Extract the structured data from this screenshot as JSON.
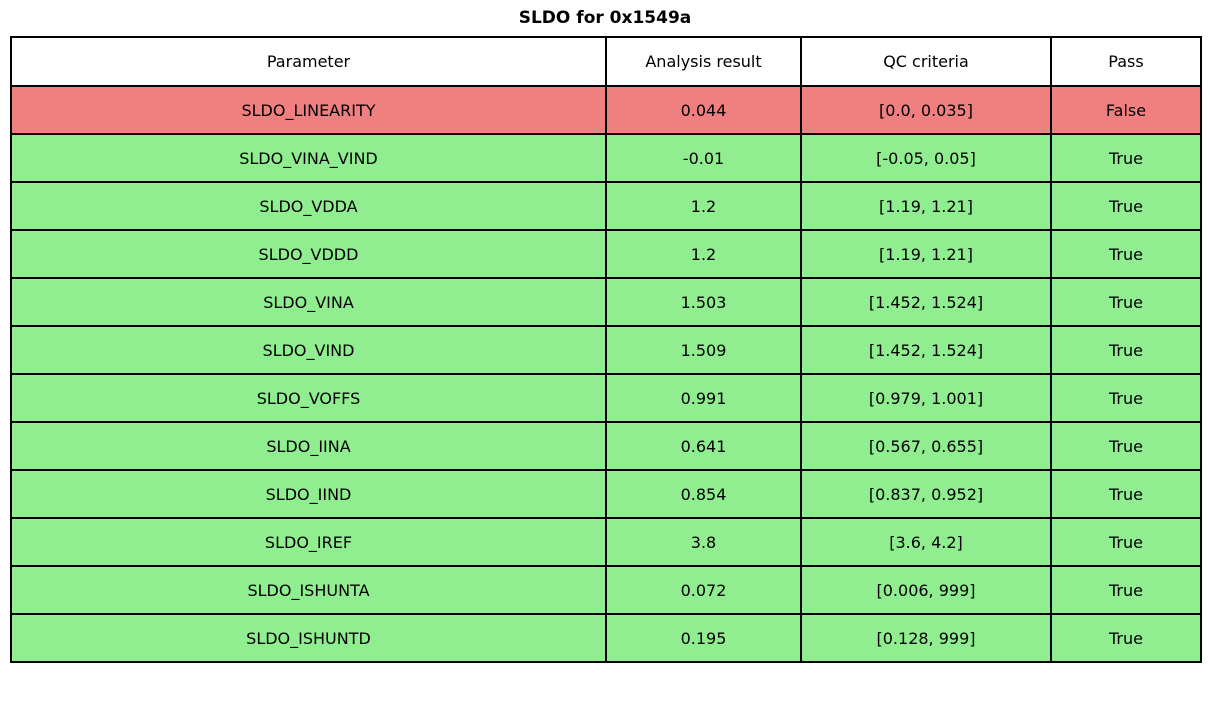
{
  "title": "SLDO for 0x1549a",
  "colors": {
    "pass_row": "#90ee90",
    "fail_row": "#f08080",
    "header_bg": "#ffffff",
    "border": "#000000"
  },
  "chart_data": {
    "type": "table",
    "title": "SLDO for 0x1549a",
    "columns": [
      "Parameter",
      "Analysis result",
      "QC criteria",
      "Pass"
    ],
    "rows": [
      [
        "SLDO_LINEARITY",
        "0.044",
        "[0.0, 0.035]",
        "False"
      ],
      [
        "SLDO_VINA_VIND",
        "-0.01",
        "[-0.05, 0.05]",
        "True"
      ],
      [
        "SLDO_VDDA",
        "1.2",
        "[1.19, 1.21]",
        "True"
      ],
      [
        "SLDO_VDDD",
        "1.2",
        "[1.19, 1.21]",
        "True"
      ],
      [
        "SLDO_VINA",
        "1.503",
        "[1.452, 1.524]",
        "True"
      ],
      [
        "SLDO_VIND",
        "1.509",
        "[1.452, 1.524]",
        "True"
      ],
      [
        "SLDO_VOFFS",
        "0.991",
        "[0.979, 1.001]",
        "True"
      ],
      [
        "SLDO_IINA",
        "0.641",
        "[0.567, 0.655]",
        "True"
      ],
      [
        "SLDO_IIND",
        "0.854",
        "[0.837, 0.952]",
        "True"
      ],
      [
        "SLDO_IREF",
        "3.8",
        "[3.6, 4.2]",
        "True"
      ],
      [
        "SLDO_ISHUNTA",
        "0.072",
        "[0.006, 999]",
        "True"
      ],
      [
        "SLDO_ISHUNTD",
        "0.195",
        "[0.128, 999]",
        "True"
      ]
    ],
    "row_colors_by_pass": {
      "True": "#90ee90",
      "False": "#f08080"
    },
    "legend_position": "none",
    "grid": "full-cell-borders"
  }
}
